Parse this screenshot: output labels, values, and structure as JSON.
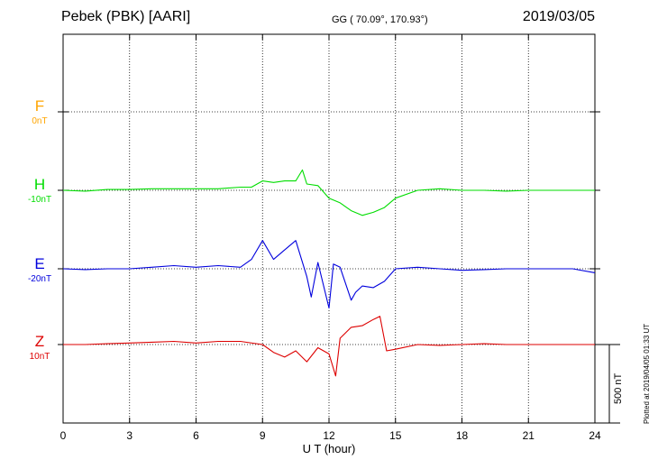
{
  "header": {
    "station": "Pebek (PBK)  [AARI]",
    "coords": "GG ( 70.09°, 170.93°)",
    "date": "2019/03/05"
  },
  "side_text": "Plotted at 2019/04/05 01:33 UT",
  "scale_bar": {
    "label": "500 nT",
    "value_nT": 500
  },
  "colors": {
    "F": "#ffa500",
    "H": "#00dd00",
    "E": "#0000dd",
    "Z": "#dd0000",
    "grid": "#000000"
  },
  "components": [
    {
      "name": "F",
      "offset": "0nT"
    },
    {
      "name": "H",
      "offset": "-10nT"
    },
    {
      "name": "E",
      "offset": "-20nT"
    },
    {
      "name": "Z",
      "offset": "10nT"
    }
  ],
  "chart_data": {
    "type": "line",
    "xlabel": "U T (hour)",
    "xlim": [
      0,
      24
    ],
    "x_ticks": [
      "0",
      "3",
      "6",
      "9",
      "12",
      "15",
      "18",
      "21",
      "24"
    ],
    "ylabel": "",
    "units": "nT",
    "grid": true,
    "series": [
      {
        "name": "H",
        "color": "#00dd00",
        "x": [
          0,
          1,
          2,
          3,
          4,
          5,
          6,
          7,
          8,
          8.5,
          9,
          9.5,
          10,
          10.5,
          10.8,
          11,
          11.5,
          12,
          12.5,
          13,
          13.5,
          14,
          14.5,
          15,
          16,
          17,
          18,
          19,
          20,
          21,
          22,
          23,
          24
        ],
        "y": [
          0,
          -5,
          5,
          5,
          10,
          10,
          10,
          10,
          20,
          20,
          60,
          50,
          60,
          60,
          130,
          40,
          30,
          -50,
          -80,
          -130,
          -160,
          -140,
          -110,
          -50,
          0,
          10,
          0,
          0,
          -5,
          0,
          0,
          0,
          0
        ]
      },
      {
        "name": "E",
        "color": "#0000dd",
        "x": [
          0,
          1,
          2,
          3,
          4,
          5,
          6,
          7,
          8,
          8.5,
          9,
          9.5,
          10,
          10.5,
          11,
          11.2,
          11.5,
          12,
          12.2,
          12.5,
          13,
          13.2,
          13.5,
          14,
          14.5,
          15,
          16,
          17,
          18,
          19,
          20,
          21,
          22,
          23,
          24
        ],
        "y": [
          0,
          -5,
          0,
          0,
          10,
          20,
          10,
          20,
          10,
          60,
          180,
          60,
          120,
          180,
          -50,
          -180,
          40,
          -250,
          30,
          10,
          -200,
          -150,
          -110,
          -120,
          -80,
          0,
          10,
          0,
          -10,
          -5,
          0,
          0,
          0,
          0,
          -25
        ]
      },
      {
        "name": "Z",
        "color": "#dd0000",
        "x": [
          0,
          1,
          2,
          3,
          4,
          5,
          6,
          7,
          8,
          9,
          9.5,
          10,
          10.5,
          11,
          11.5,
          12,
          12.3,
          12.5,
          13,
          13.5,
          14,
          14.3,
          14.6,
          15,
          16,
          17,
          18,
          19,
          20,
          21,
          22,
          23,
          24
        ],
        "y": [
          0,
          0,
          5,
          10,
          15,
          20,
          10,
          20,
          20,
          0,
          -50,
          -80,
          -40,
          -110,
          -20,
          -60,
          -200,
          40,
          110,
          120,
          160,
          180,
          -40,
          -30,
          0,
          -5,
          0,
          5,
          0,
          0,
          0,
          0,
          0
        ]
      }
    ]
  }
}
